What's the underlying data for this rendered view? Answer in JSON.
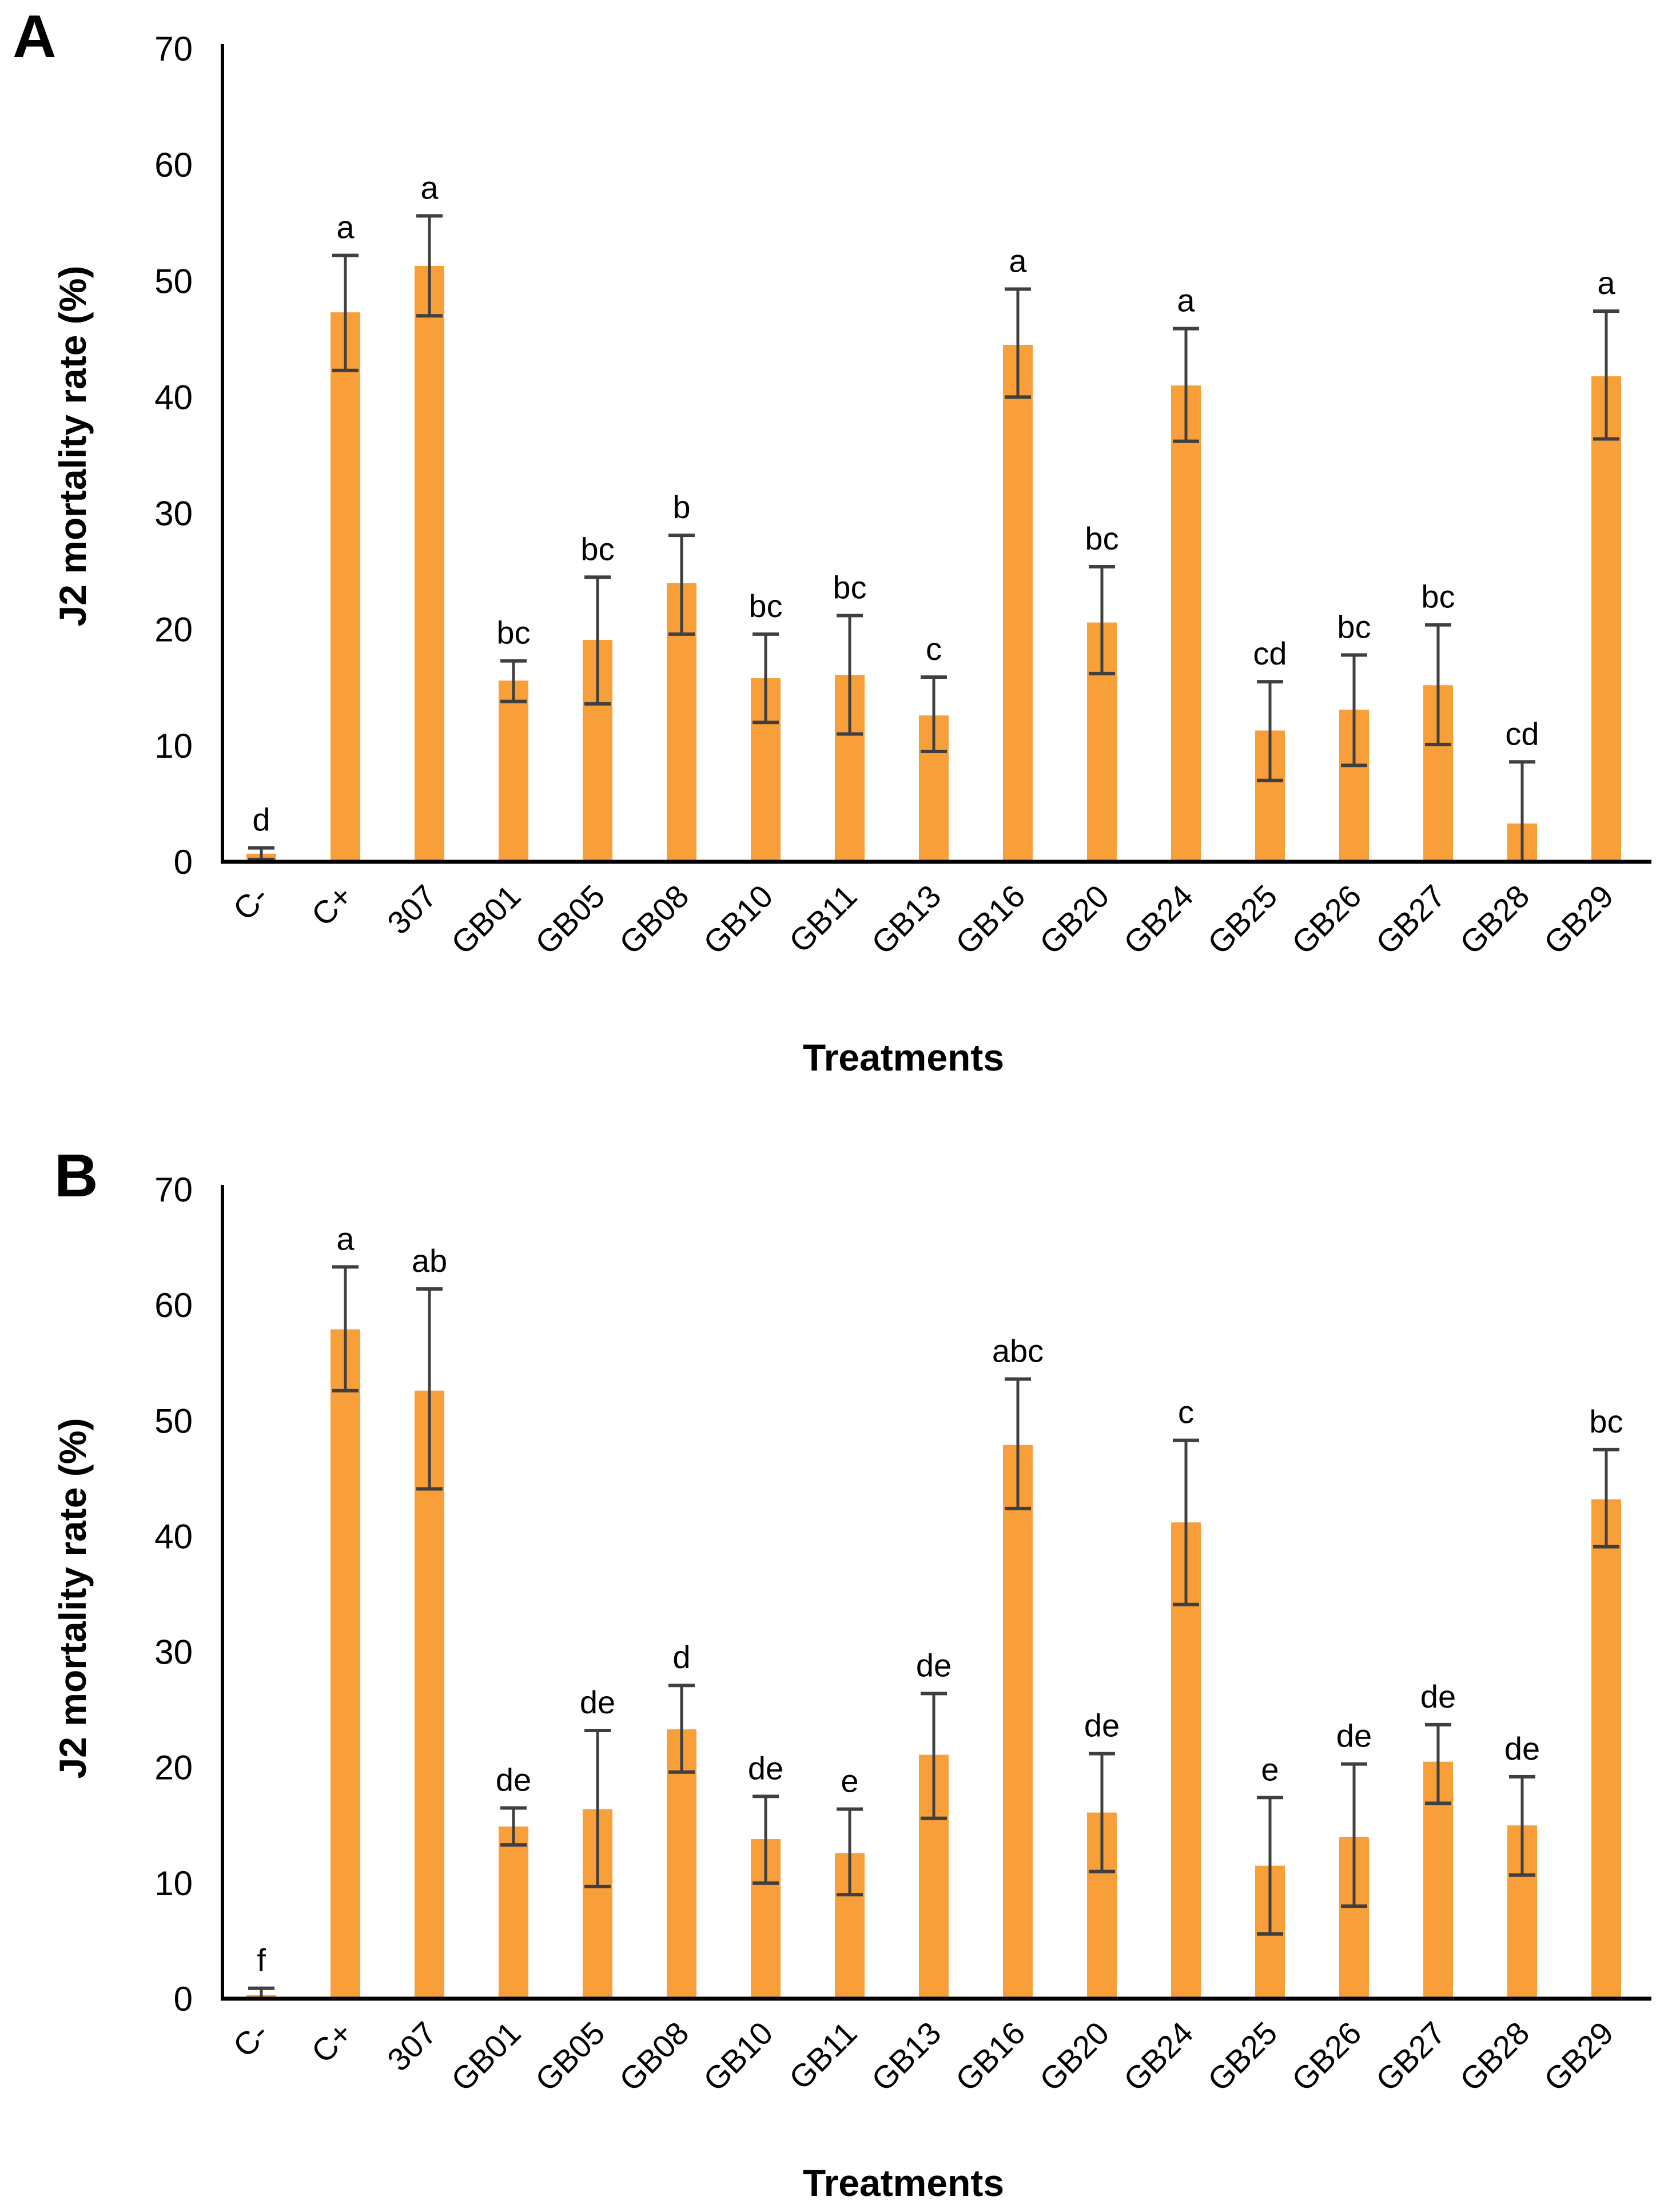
{
  "page": {
    "background": "#ffffff"
  },
  "colors": {
    "bar_fill": "#F99F3A",
    "error_bar": "#3F3F3F",
    "axis_line": "#000000",
    "text": "#000000"
  },
  "chart_data": [
    {
      "type": "bar",
      "panel_label": "A",
      "title": "",
      "ylabel": "J2 mortality rate (%)",
      "xlabel": "Treatments",
      "ylim": [
        0,
        70
      ],
      "yticks": [
        0,
        10,
        20,
        30,
        40,
        50,
        60,
        70
      ],
      "grid": false,
      "legend": null,
      "categories": [
        "C-",
        "C+",
        "307",
        "GB01",
        "GB05",
        "GB08",
        "GB10",
        "GB11",
        "GB13",
        "GB16",
        "GB20",
        "GB24",
        "GB25",
        "GB26",
        "GB27",
        "GB28",
        "GB29"
      ],
      "values": [
        0.7,
        47.3,
        51.3,
        15.6,
        19.1,
        24.0,
        15.8,
        16.1,
        12.6,
        44.5,
        20.6,
        41.0,
        11.3,
        13.1,
        15.2,
        3.3,
        41.8
      ],
      "error_upper": [
        1.2,
        52.2,
        55.6,
        17.3,
        24.5,
        28.1,
        19.6,
        21.2,
        15.9,
        49.3,
        25.4,
        45.9,
        15.5,
        17.8,
        20.4,
        8.6,
        47.4
      ],
      "error_lower": [
        0.2,
        42.3,
        47.0,
        13.8,
        13.6,
        19.6,
        12.0,
        11.0,
        9.5,
        40.0,
        16.2,
        36.2,
        7.0,
        8.3,
        10.1,
        0.0,
        36.4
      ],
      "sig_letters": [
        "d",
        "a",
        "a",
        "bc",
        "bc",
        "b",
        "bc",
        "bc",
        "c",
        "a",
        "bc",
        "a",
        "cd",
        "bc",
        "bc",
        "cd",
        "a"
      ],
      "lower_cap_visible": [
        true,
        true,
        true,
        true,
        true,
        true,
        true,
        true,
        true,
        true,
        true,
        true,
        true,
        true,
        true,
        false,
        true
      ]
    },
    {
      "type": "bar",
      "panel_label": "B",
      "title": "",
      "ylabel": "J2 mortality rate (%)",
      "xlabel": "Treatments",
      "ylim": [
        0,
        70
      ],
      "yticks": [
        0,
        10,
        20,
        30,
        40,
        50,
        60,
        70
      ],
      "grid": false,
      "legend": null,
      "categories": [
        "C-",
        "C+",
        "307",
        "GB01",
        "GB05",
        "GB08",
        "GB10",
        "GB11",
        "GB13",
        "GB16",
        "GB20",
        "GB24",
        "GB25",
        "GB26",
        "GB27",
        "GB28",
        "GB29"
      ],
      "values": [
        0.3,
        57.9,
        52.6,
        14.9,
        16.4,
        23.3,
        13.8,
        12.6,
        21.1,
        47.9,
        16.1,
        41.2,
        11.5,
        14.0,
        20.5,
        15.0,
        43.2
      ],
      "error_upper": [
        0.9,
        63.3,
        61.4,
        16.5,
        23.2,
        27.1,
        17.5,
        16.4,
        26.4,
        53.6,
        21.2,
        48.3,
        17.4,
        20.3,
        23.7,
        19.2,
        47.5
      ],
      "error_lower": [
        0.0,
        52.6,
        44.1,
        13.3,
        9.7,
        19.6,
        10.0,
        9.0,
        15.6,
        42.4,
        11.0,
        34.1,
        5.6,
        8.0,
        16.9,
        10.7,
        39.1
      ],
      "sig_letters": [
        "f",
        "a",
        "ab",
        "de",
        "de",
        "d",
        "de",
        "e",
        "de",
        "abc",
        "de",
        "c",
        "e",
        "de",
        "de",
        "de",
        "bc"
      ],
      "lower_cap_visible": [
        false,
        true,
        true,
        true,
        true,
        true,
        true,
        true,
        true,
        true,
        true,
        true,
        true,
        true,
        true,
        true,
        true
      ]
    }
  ]
}
